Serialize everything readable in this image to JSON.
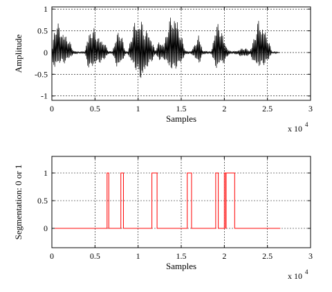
{
  "chart_data": [
    {
      "type": "line",
      "title": "",
      "xlabel": "Samples",
      "ylabel": "Amplitude",
      "x_exponent_label": {
        "base": "x 10",
        "exp": "4"
      },
      "xlim": [
        0,
        3
      ],
      "ylim": [
        -1.1,
        1.05
      ],
      "xticks": [
        0,
        0.5,
        1,
        1.5,
        2,
        2.5,
        3
      ],
      "xtick_labels": [
        "0",
        "0.5",
        "1",
        "1.5",
        "2",
        "2.5",
        "3"
      ],
      "yticks": [
        -1,
        -0.5,
        0,
        0.5,
        1
      ],
      "ytick_labels": [
        "-1",
        "-0.5",
        "0",
        "0.5",
        "1"
      ],
      "grid": true,
      "line_color": "#000000",
      "series": [
        {
          "kind": "waveform-envelope",
          "x": [
            0,
            0.03,
            0.05,
            0.1,
            0.15,
            0.2,
            0.25,
            0.3,
            0.33,
            0.38,
            0.42,
            0.45,
            0.5,
            0.55,
            0.6,
            0.65,
            0.7,
            0.75,
            0.8,
            0.85,
            0.88,
            0.92,
            0.95,
            1.0,
            1.05,
            1.08,
            1.12,
            1.15,
            1.2,
            1.25,
            1.3,
            1.35,
            1.4,
            1.45,
            1.5,
            1.55,
            1.6,
            1.65,
            1.7,
            1.75,
            1.8,
            1.85,
            1.9,
            1.95,
            2.0,
            2.05,
            2.1,
            2.15,
            2.2,
            2.25,
            2.3,
            2.35,
            2.4,
            2.45,
            2.5,
            2.55,
            2.6,
            2.65
          ],
          "upper": [
            0.05,
            0.55,
            0.75,
            0.6,
            0.45,
            0.3,
            0.05,
            0.02,
            0.02,
            0.02,
            0.4,
            0.6,
            0.55,
            0.35,
            0.3,
            0.05,
            0.02,
            0.45,
            0.5,
            0.05,
            0.02,
            0.35,
            0.7,
            0.8,
            0.75,
            0.45,
            0.6,
            0.35,
            0.05,
            0.3,
            0.2,
            0.7,
            0.95,
            0.85,
            0.4,
            0.05,
            0.02,
            0.15,
            0.45,
            0.05,
            0.03,
            0.02,
            0.7,
            0.65,
            0.3,
            0.05,
            0.03,
            0.05,
            0.1,
            0.1,
            0.05,
            0.4,
            0.8,
            0.65,
            0.4,
            0.02,
            0.02,
            0.0
          ],
          "lower": [
            -0.05,
            -0.55,
            -0.3,
            -0.25,
            -0.25,
            -0.15,
            -0.05,
            -0.02,
            -0.02,
            -0.02,
            -0.35,
            -0.4,
            -0.3,
            -0.25,
            -0.2,
            -0.05,
            -0.02,
            -0.35,
            -0.3,
            -0.05,
            -0.02,
            -0.25,
            -0.35,
            -0.5,
            -0.72,
            -0.5,
            -0.3,
            -0.25,
            -0.05,
            -0.2,
            -0.15,
            -0.35,
            -0.45,
            -0.35,
            -0.25,
            -0.05,
            -0.02,
            -0.1,
            -0.3,
            -0.05,
            -0.03,
            -0.02,
            -0.4,
            -0.3,
            -0.25,
            -0.05,
            -0.03,
            -0.05,
            -0.1,
            -0.1,
            -0.05,
            -0.3,
            -0.35,
            -0.3,
            -0.25,
            -0.02,
            -0.02,
            0.0
          ]
        }
      ]
    },
    {
      "type": "line",
      "title": "",
      "xlabel": "Samples",
      "ylabel": "Segmentation: 0 or 1",
      "x_exponent_label": {
        "base": "x 10",
        "exp": "4"
      },
      "xlim": [
        0,
        3
      ],
      "ylim": [
        -0.35,
        1.3
      ],
      "xticks": [
        0,
        0.5,
        1,
        1.5,
        2,
        2.5,
        3
      ],
      "xtick_labels": [
        "0",
        "0.5",
        "1",
        "1.5",
        "2",
        "2.5",
        "3"
      ],
      "yticks": [
        0,
        0.5,
        1
      ],
      "ytick_labels": [
        "0",
        "0.5",
        "1"
      ],
      "grid": true,
      "line_color": "#ff0000",
      "series": [
        {
          "kind": "step",
          "x": [
            0,
            0.64,
            0.64,
            0.66,
            0.66,
            0.8,
            0.8,
            0.83,
            0.83,
            1.16,
            1.16,
            1.22,
            1.22,
            1.57,
            1.57,
            1.62,
            1.62,
            1.9,
            1.9,
            1.93,
            1.93,
            2.0,
            2.0,
            2.015,
            2.015,
            2.02,
            2.02,
            2.12,
            2.12,
            2.15,
            2.15,
            2.65
          ],
          "y": [
            0,
            0,
            1,
            1,
            0,
            0,
            1,
            1,
            0,
            0,
            1,
            1,
            0,
            0,
            1,
            1,
            0,
            0,
            1,
            1,
            0,
            0,
            1,
            1,
            0,
            0,
            1,
            1,
            0,
            0,
            0,
            0
          ]
        }
      ]
    }
  ]
}
